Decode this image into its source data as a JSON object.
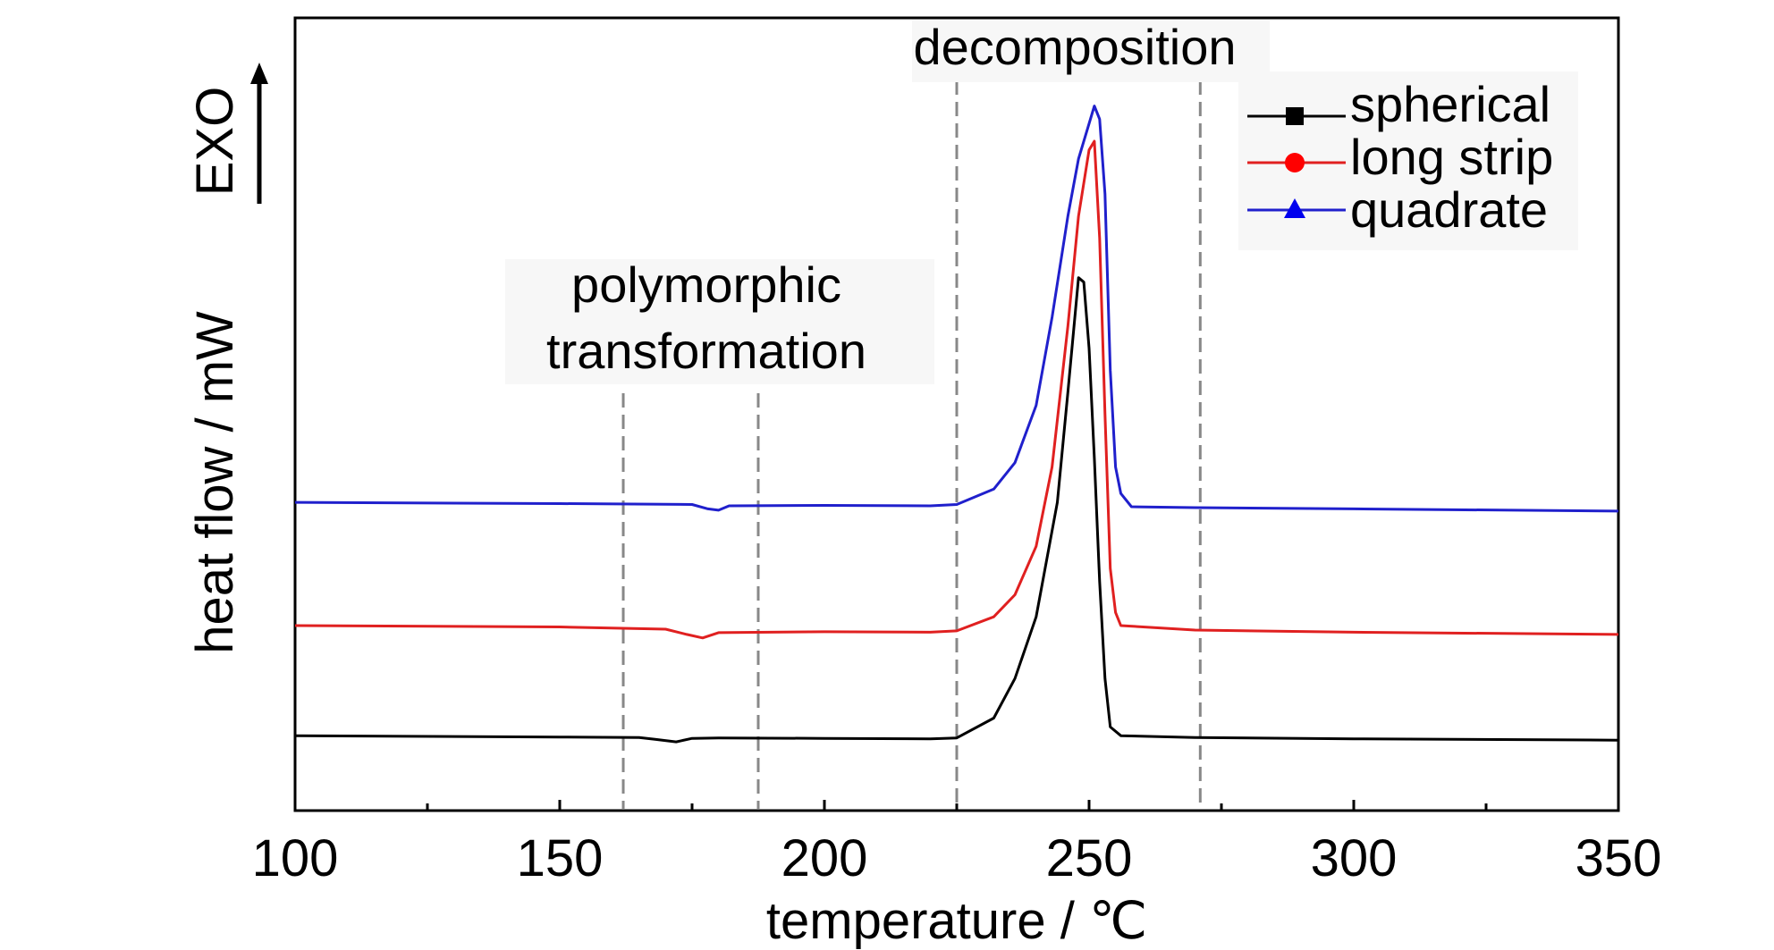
{
  "chart_data": {
    "type": "line",
    "title": "",
    "xlabel": "temperature / ℃",
    "ylabel": "heat flow / mW",
    "exo_label": "EXO",
    "xlim": [
      100,
      350
    ],
    "x_ticks": [
      100,
      150,
      200,
      250,
      300,
      350
    ],
    "x_tick_labels": [
      "100",
      "150",
      "200",
      "250",
      "300",
      "350"
    ],
    "y_ticks_shown": false,
    "grid": false,
    "legend_position": "top-right",
    "annotations": [
      {
        "id": "polymorphic",
        "lines": [
          "polymorphic",
          "transformation"
        ],
        "x_range": [
          162,
          187.5
        ]
      },
      {
        "id": "decomposition",
        "lines": [
          "decomposition"
        ],
        "x_range": [
          225,
          271
        ]
      }
    ],
    "series": [
      {
        "name": "spherical",
        "color": "#000000",
        "marker": "square",
        "points": [
          [
            100,
            1.7
          ],
          [
            150,
            1.67
          ],
          [
            165,
            1.66
          ],
          [
            168,
            1.62
          ],
          [
            172,
            1.56
          ],
          [
            175,
            1.64
          ],
          [
            180,
            1.65
          ],
          [
            200,
            1.64
          ],
          [
            220,
            1.63
          ],
          [
            225,
            1.65
          ],
          [
            232,
            2.1
          ],
          [
            236,
            3.0
          ],
          [
            240,
            4.4
          ],
          [
            244,
            7.0
          ],
          [
            246,
            9.5
          ],
          [
            248,
            12.1
          ],
          [
            249,
            12.0
          ],
          [
            250,
            10.5
          ],
          [
            251,
            8.0
          ],
          [
            252,
            5.2
          ],
          [
            253,
            3.0
          ],
          [
            254,
            1.9
          ],
          [
            256,
            1.7
          ],
          [
            270,
            1.66
          ],
          [
            300,
            1.63
          ],
          [
            350,
            1.6
          ]
        ]
      },
      {
        "name": "long strip",
        "color": "#e02020",
        "marker": "circle",
        "points": [
          [
            100,
            4.2
          ],
          [
            150,
            4.17
          ],
          [
            170,
            4.12
          ],
          [
            174,
            4.0
          ],
          [
            177,
            3.92
          ],
          [
            180,
            4.04
          ],
          [
            200,
            4.06
          ],
          [
            220,
            4.05
          ],
          [
            225,
            4.08
          ],
          [
            232,
            4.4
          ],
          [
            236,
            4.9
          ],
          [
            240,
            6.0
          ],
          [
            243,
            7.8
          ],
          [
            246,
            11.0
          ],
          [
            248,
            13.5
          ],
          [
            250,
            15.0
          ],
          [
            251,
            15.2
          ],
          [
            252,
            13.0
          ],
          [
            253,
            9.0
          ],
          [
            254,
            5.5
          ],
          [
            255,
            4.5
          ],
          [
            256,
            4.2
          ],
          [
            270,
            4.1
          ],
          [
            300,
            4.05
          ],
          [
            350,
            4.0
          ]
        ]
      },
      {
        "name": "quadrate",
        "color": "#2020cc",
        "marker": "triangle",
        "points": [
          [
            100,
            7.0
          ],
          [
            150,
            6.97
          ],
          [
            175,
            6.95
          ],
          [
            178,
            6.85
          ],
          [
            180,
            6.82
          ],
          [
            182,
            6.92
          ],
          [
            200,
            6.93
          ],
          [
            220,
            6.92
          ],
          [
            225,
            6.95
          ],
          [
            232,
            7.3
          ],
          [
            236,
            7.9
          ],
          [
            240,
            9.2
          ],
          [
            243,
            11.2
          ],
          [
            246,
            13.5
          ],
          [
            248,
            14.8
          ],
          [
            250,
            15.6
          ],
          [
            251,
            16.0
          ],
          [
            252,
            15.7
          ],
          [
            253,
            14.0
          ],
          [
            254,
            10.0
          ],
          [
            255,
            7.8
          ],
          [
            256,
            7.2
          ],
          [
            258,
            6.9
          ],
          [
            270,
            6.88
          ],
          [
            300,
            6.85
          ],
          [
            350,
            6.8
          ]
        ]
      }
    ],
    "ylim": [
      0,
      18
    ]
  }
}
